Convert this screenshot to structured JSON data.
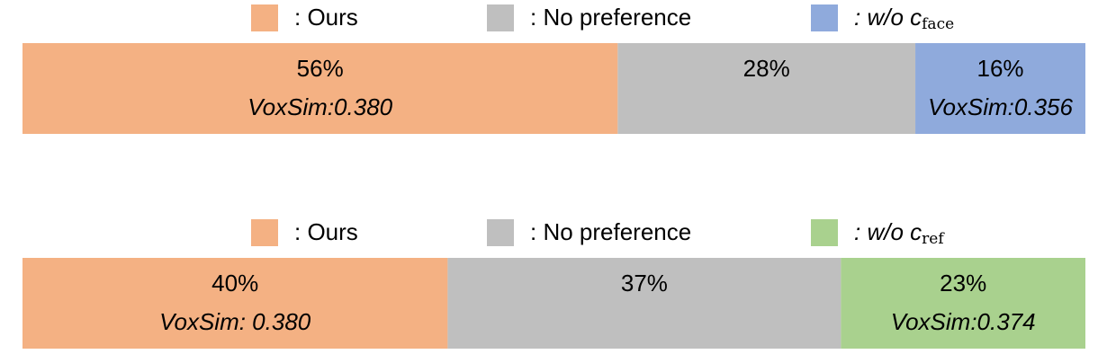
{
  "chart_data": [
    {
      "type": "bar",
      "orientation": "horizontal",
      "stacked": true,
      "xlim": [
        0,
        100
      ],
      "series": [
        {
          "name": ": Ours",
          "color": "#f4b183",
          "values": [
            56
          ],
          "value_labels": [
            "56%"
          ],
          "annotations": [
            "VoxSim:0.380"
          ]
        },
        {
          "name": ": No preference",
          "color": "#bfbfbf",
          "values": [
            28
          ],
          "value_labels": [
            "28%"
          ]
        },
        {
          "name": ": w/o c",
          "subscript": "face",
          "color": "#8faadc",
          "values": [
            16
          ],
          "value_labels": [
            "16%"
          ],
          "annotations": [
            "VoxSim:0.356"
          ]
        }
      ]
    },
    {
      "type": "bar",
      "orientation": "horizontal",
      "stacked": true,
      "xlim": [
        0,
        100
      ],
      "series": [
        {
          "name": ": Ours",
          "color": "#f4b183",
          "values": [
            40
          ],
          "value_labels": [
            "40%"
          ],
          "annotations": [
            "VoxSim: 0.380"
          ]
        },
        {
          "name": ": No preference",
          "color": "#bfbfbf",
          "values": [
            37
          ],
          "value_labels": [
            "37%"
          ]
        },
        {
          "name": ": w/o c",
          "subscript": "ref",
          "color": "#a9d18e",
          "values": [
            23
          ],
          "value_labels": [
            "23%"
          ],
          "annotations": [
            "VoxSim:0.374"
          ]
        }
      ]
    }
  ]
}
